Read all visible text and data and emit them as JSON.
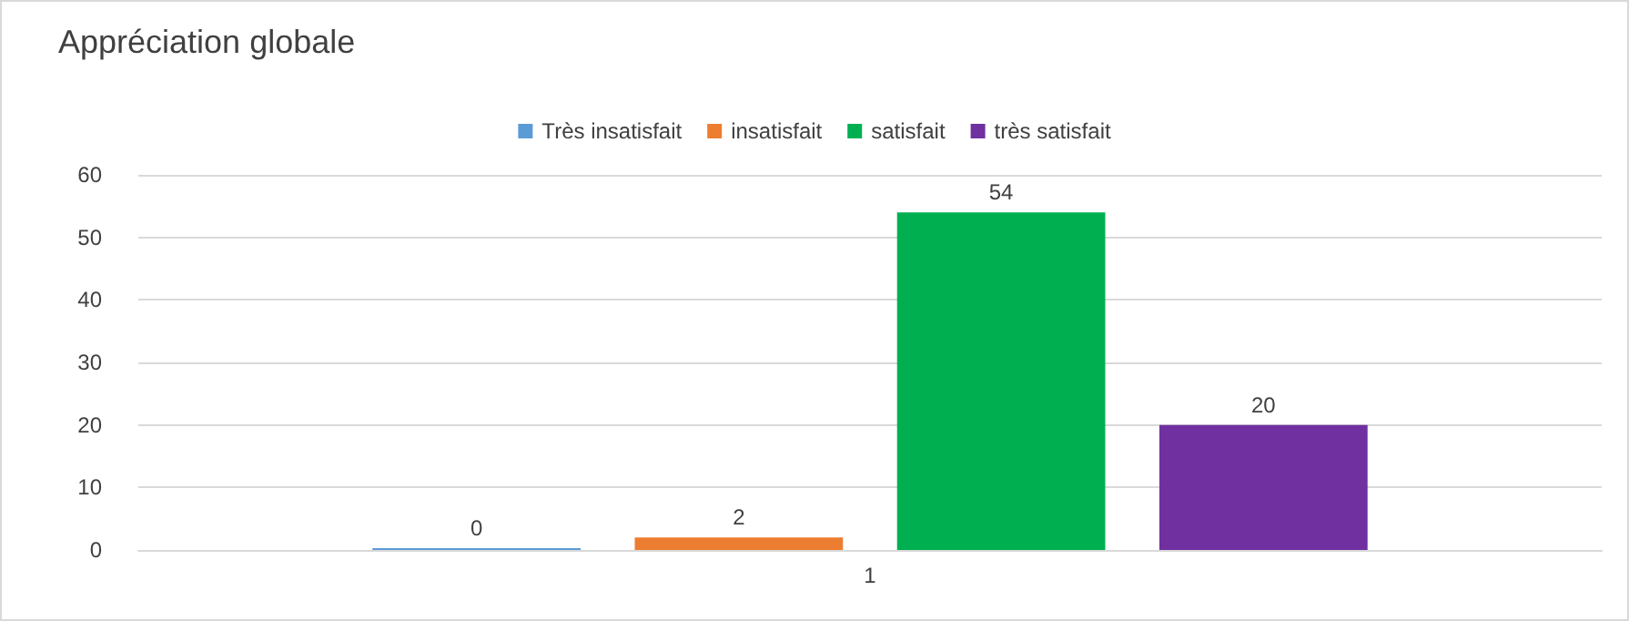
{
  "chart_data": {
    "type": "bar",
    "title": "Appréciation globale",
    "categories": [
      "1"
    ],
    "series": [
      {
        "name": "Très insatisfait",
        "color": "#5b9bd5",
        "values": [
          0
        ]
      },
      {
        "name": "insatisfait",
        "color": "#ed7d31",
        "values": [
          2
        ]
      },
      {
        "name": "satisfait",
        "color": "#00b050",
        "values": [
          54
        ]
      },
      {
        "name": "très satisfait",
        "color": "#7030a0",
        "values": [
          20
        ]
      }
    ],
    "ylim": [
      0,
      60
    ],
    "yticks": [
      0,
      10,
      20,
      30,
      40,
      50,
      60
    ],
    "grid": "y",
    "legend": "top",
    "data_labels": true
  }
}
